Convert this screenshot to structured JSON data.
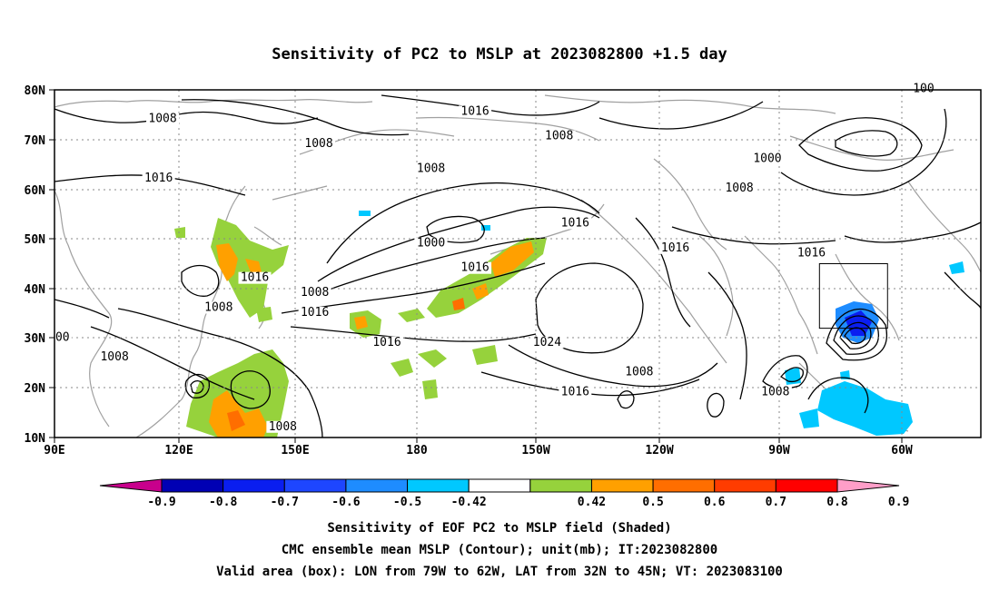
{
  "title": "Sensitivity of PC2 to MSLP at 2023082800 +1.5 day",
  "map": {
    "lat_labels": [
      "80N",
      "70N",
      "60N",
      "50N",
      "40N",
      "30N",
      "20N",
      "10N"
    ],
    "lon_labels": [
      "90E",
      "120E",
      "150E",
      "180",
      "150W",
      "120W",
      "90W",
      "60W"
    ],
    "contour_labels": [
      {
        "text": "1008",
        "lat": 73.5,
        "lon": 117
      },
      {
        "text": "1008",
        "lat": 68.5,
        "lon": 156
      },
      {
        "text": "1016",
        "lat": 75,
        "lon": 195
      },
      {
        "text": "1008",
        "lat": 70,
        "lon": 216
      },
      {
        "text": "1008",
        "lat": 63.5,
        "lon": 184
      },
      {
        "text": "1000",
        "lat": 65.5,
        "lon": 268
      },
      {
        "text": "1016",
        "lat": 61.5,
        "lon": 116
      },
      {
        "text": "1008",
        "lat": 59.5,
        "lon": 261
      },
      {
        "text": "1016",
        "lat": 52.5,
        "lon": 220
      },
      {
        "text": "1000",
        "lat": 48.5,
        "lon": 184
      },
      {
        "text": "1016",
        "lat": 47.5,
        "lon": 245
      },
      {
        "text": "1016",
        "lat": 46.5,
        "lon": 279
      },
      {
        "text": "1016",
        "lat": 43.5,
        "lon": 195
      },
      {
        "text": "1016",
        "lat": 41.5,
        "lon": 140
      },
      {
        "text": "1008",
        "lat": 38.5,
        "lon": 155
      },
      {
        "text": "1008",
        "lat": 35.5,
        "lon": 131
      },
      {
        "text": "1016",
        "lat": 34.5,
        "lon": 155
      },
      {
        "text": "1016",
        "lat": 28.5,
        "lon": 173
      },
      {
        "text": "1024",
        "lat": 28.5,
        "lon": 213
      },
      {
        "text": "1008",
        "lat": 25.5,
        "lon": 105
      },
      {
        "text": "1008",
        "lat": 22.5,
        "lon": 236
      },
      {
        "text": "1008",
        "lat": 18.5,
        "lon": 270
      },
      {
        "text": "1016",
        "lat": 18.5,
        "lon": 220
      },
      {
        "text": "1008",
        "lat": 11.5,
        "lon": 147
      },
      {
        "text": "00",
        "lat": 29.5,
        "lon": 92
      },
      {
        "text": "100",
        "lat": 79.5,
        "lon": 307
      }
    ],
    "valid_box": {
      "lon_w": -79,
      "lon_e": -62,
      "lat_s": 32,
      "lat_n": 45
    }
  },
  "colorbar": {
    "labels": [
      "-0.9",
      "-0.8",
      "-0.7",
      "-0.6",
      "-0.5",
      "-0.42",
      "0.42",
      "0.5",
      "0.6",
      "0.7",
      "0.8",
      "0.9"
    ],
    "colors": {
      "neg_cap": "#c8008c",
      "neg": [
        "#0000b4",
        "#0a1ef0",
        "#1e46ff",
        "#1e8cff",
        "#00c8ff"
      ],
      "mid": "#ffffff",
      "pos": [
        "#96d23c",
        "#ffa000",
        "#ff6e00",
        "#ff3c00",
        "#ff0000"
      ],
      "pos_cap": "#ff9ec8"
    }
  },
  "captions": {
    "line1": "Sensitivity of EOF PC2 to MSLP field (Shaded)",
    "line2": "CMC ensemble mean MSLP (Contour); unit(mb); IT:2023082800",
    "line3": "Valid area (box): LON from 79W to 62W, LAT from 32N to 45N; VT: 2023083100"
  }
}
